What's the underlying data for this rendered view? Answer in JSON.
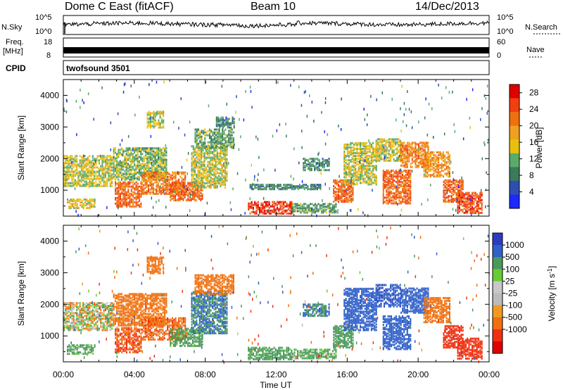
{
  "header": {
    "radar_title": "Dome C East (fitACF)",
    "beam": "Beam 10",
    "date": "14/Dec/2013"
  },
  "top_panels": {
    "nsky_label": "N.Sky",
    "nsky_ticks": [
      "10^5",
      "10^0"
    ],
    "nsearch_ticks": [
      "10^5",
      "10^0"
    ],
    "nsearch_label": "N.Search",
    "freq_label": "Freq.",
    "freq_unit": "[MHz]",
    "freq_ticks": [
      "18",
      "8"
    ],
    "nave_ticks": [
      "60",
      "0"
    ],
    "nave_label": "Nave",
    "cpid_label": "CPID",
    "cpid_value": "twofsound 3501"
  },
  "colors": {
    "power_scale": [
      "#1e28ff",
      "#2f4fb0",
      "#3b7a5a",
      "#5aaa6a",
      "#e8c010",
      "#f0a020",
      "#f07010",
      "#f04010",
      "#e00000"
    ],
    "velocity_scale": [
      "#2c3cc0",
      "#3060c8",
      "#4a9a5a",
      "#66cc33",
      "#c8c8c8",
      "#bbbbbb",
      "#f29a20",
      "#f07010",
      "#f03010",
      "#e00000"
    ]
  },
  "chart_data": [
    {
      "type": "heatmap",
      "panel": "power",
      "ylabel": "Slant Range [km]",
      "xlim": [
        "00:00",
        "00:00"
      ],
      "ylim": [
        180,
        4500
      ],
      "yticks": [
        1000,
        2000,
        3000,
        4000
      ],
      "colorbar": {
        "label": "Power [dB]",
        "ticks": [
          4,
          8,
          12,
          16,
          20,
          24,
          28
        ],
        "range": [
          0,
          30
        ]
      },
      "regions": [
        {
          "t0": 0.0,
          "t1": 2.7,
          "r0": 1100,
          "r1": 2050,
          "value": 14
        },
        {
          "t0": 0.2,
          "t1": 1.8,
          "r0": 400,
          "r1": 700,
          "value": 16
        },
        {
          "t0": 2.8,
          "t1": 5.8,
          "r0": 1300,
          "r1": 2300,
          "value": 12
        },
        {
          "t0": 2.9,
          "t1": 4.4,
          "r0": 450,
          "r1": 1250,
          "value": 24
        },
        {
          "t0": 4.4,
          "t1": 6.9,
          "r0": 850,
          "r1": 1550,
          "value": 22
        },
        {
          "t0": 4.7,
          "t1": 5.6,
          "r0": 2950,
          "r1": 3450,
          "value": 14
        },
        {
          "t0": 6.0,
          "t1": 7.8,
          "r0": 650,
          "r1": 1200,
          "value": 24
        },
        {
          "t0": 7.2,
          "t1": 9.2,
          "r0": 1050,
          "r1": 2400,
          "value": 14
        },
        {
          "t0": 7.4,
          "t1": 9.6,
          "r0": 2300,
          "r1": 2900,
          "value": 10
        },
        {
          "t0": 8.6,
          "t1": 9.6,
          "r0": 2950,
          "r1": 3300,
          "value": 8
        },
        {
          "t0": 10.4,
          "t1": 12.9,
          "r0": 230,
          "r1": 600,
          "value": 28
        },
        {
          "t0": 12.9,
          "t1": 15.4,
          "r0": 260,
          "r1": 560,
          "value": 10
        },
        {
          "t0": 10.5,
          "t1": 14.5,
          "r0": 1000,
          "r1": 1160,
          "value": 8
        },
        {
          "t0": 13.5,
          "t1": 15.0,
          "r0": 1600,
          "r1": 2000,
          "value": 8
        },
        {
          "t0": 15.2,
          "t1": 16.3,
          "r0": 600,
          "r1": 1300,
          "value": 24
        },
        {
          "t0": 15.8,
          "t1": 17.6,
          "r0": 1150,
          "r1": 2500,
          "value": 14
        },
        {
          "t0": 17.6,
          "t1": 19.0,
          "r0": 1900,
          "r1": 2600,
          "value": 14
        },
        {
          "t0": 18.0,
          "t1": 19.6,
          "r0": 550,
          "r1": 1600,
          "value": 24
        },
        {
          "t0": 19.0,
          "t1": 20.6,
          "r0": 1700,
          "r1": 2500,
          "value": 22
        },
        {
          "t0": 20.3,
          "t1": 21.8,
          "r0": 1400,
          "r1": 2200,
          "value": 20
        },
        {
          "t0": 21.4,
          "t1": 22.5,
          "r0": 600,
          "r1": 1300,
          "value": 24
        },
        {
          "t0": 22.2,
          "t1": 23.6,
          "r0": 250,
          "r1": 900,
          "value": 26
        }
      ]
    },
    {
      "type": "heatmap",
      "panel": "velocity",
      "ylabel": "Slant Range [km]",
      "xlabel": "Time UT",
      "xticks": [
        "00:00",
        "04:00",
        "08:00",
        "12:00",
        "16:00",
        "20:00",
        "00:00"
      ],
      "xlim": [
        "00:00",
        "00:00"
      ],
      "ylim": [
        180,
        4500
      ],
      "yticks": [
        1000,
        2000,
        3000,
        4000
      ],
      "colorbar": {
        "label": "Velocity [m s^-1]",
        "ticks": [
          "1000",
          "500",
          "100",
          "25",
          "-25",
          "-100",
          "-500",
          "-1000"
        ]
      },
      "regions": [
        {
          "t0": 0.0,
          "t1": 2.7,
          "r0": 1150,
          "r1": 2050,
          "value": 0
        },
        {
          "t0": 0.2,
          "t1": 1.8,
          "r0": 400,
          "r1": 700,
          "value": 100
        },
        {
          "t0": 2.8,
          "t1": 5.8,
          "r0": 1300,
          "r1": 2300,
          "value": -150
        },
        {
          "t0": 2.9,
          "t1": 4.4,
          "r0": 450,
          "r1": 1250,
          "value": -300
        },
        {
          "t0": 4.4,
          "t1": 6.9,
          "r0": 850,
          "r1": 1550,
          "value": -250
        },
        {
          "t0": 4.7,
          "t1": 5.6,
          "r0": 2950,
          "r1": 3450,
          "value": -200
        },
        {
          "t0": 6.0,
          "t1": 7.8,
          "r0": 650,
          "r1": 1200,
          "value": 150
        },
        {
          "t0": 7.2,
          "t1": 9.2,
          "r0": 1050,
          "r1": 2400,
          "value": 300
        },
        {
          "t0": 7.4,
          "t1": 9.6,
          "r0": 2300,
          "r1": 2900,
          "value": -200
        },
        {
          "t0": 10.4,
          "t1": 12.9,
          "r0": 230,
          "r1": 600,
          "value": 150
        },
        {
          "t0": 12.9,
          "t1": 15.4,
          "r0": 260,
          "r1": 560,
          "value": 100
        },
        {
          "t0": 13.5,
          "t1": 15.0,
          "r0": 1600,
          "r1": 2000,
          "value": 300
        },
        {
          "t0": 15.2,
          "t1": 16.3,
          "r0": 600,
          "r1": 1300,
          "value": 200
        },
        {
          "t0": 15.8,
          "t1": 17.6,
          "r0": 1150,
          "r1": 2500,
          "value": 600
        },
        {
          "t0": 17.6,
          "t1": 19.0,
          "r0": 1900,
          "r1": 2600,
          "value": 700
        },
        {
          "t0": 18.0,
          "t1": 19.6,
          "r0": 550,
          "r1": 1600,
          "value": 400
        },
        {
          "t0": 19.0,
          "t1": 20.6,
          "r0": 1700,
          "r1": 2500,
          "value": 600
        },
        {
          "t0": 20.3,
          "t1": 21.8,
          "r0": 1400,
          "r1": 2200,
          "value": -200
        },
        {
          "t0": 21.4,
          "t1": 22.5,
          "r0": 600,
          "r1": 1300,
          "value": -400
        },
        {
          "t0": 22.2,
          "t1": 23.6,
          "r0": 250,
          "r1": 900,
          "value": -500
        }
      ]
    }
  ]
}
